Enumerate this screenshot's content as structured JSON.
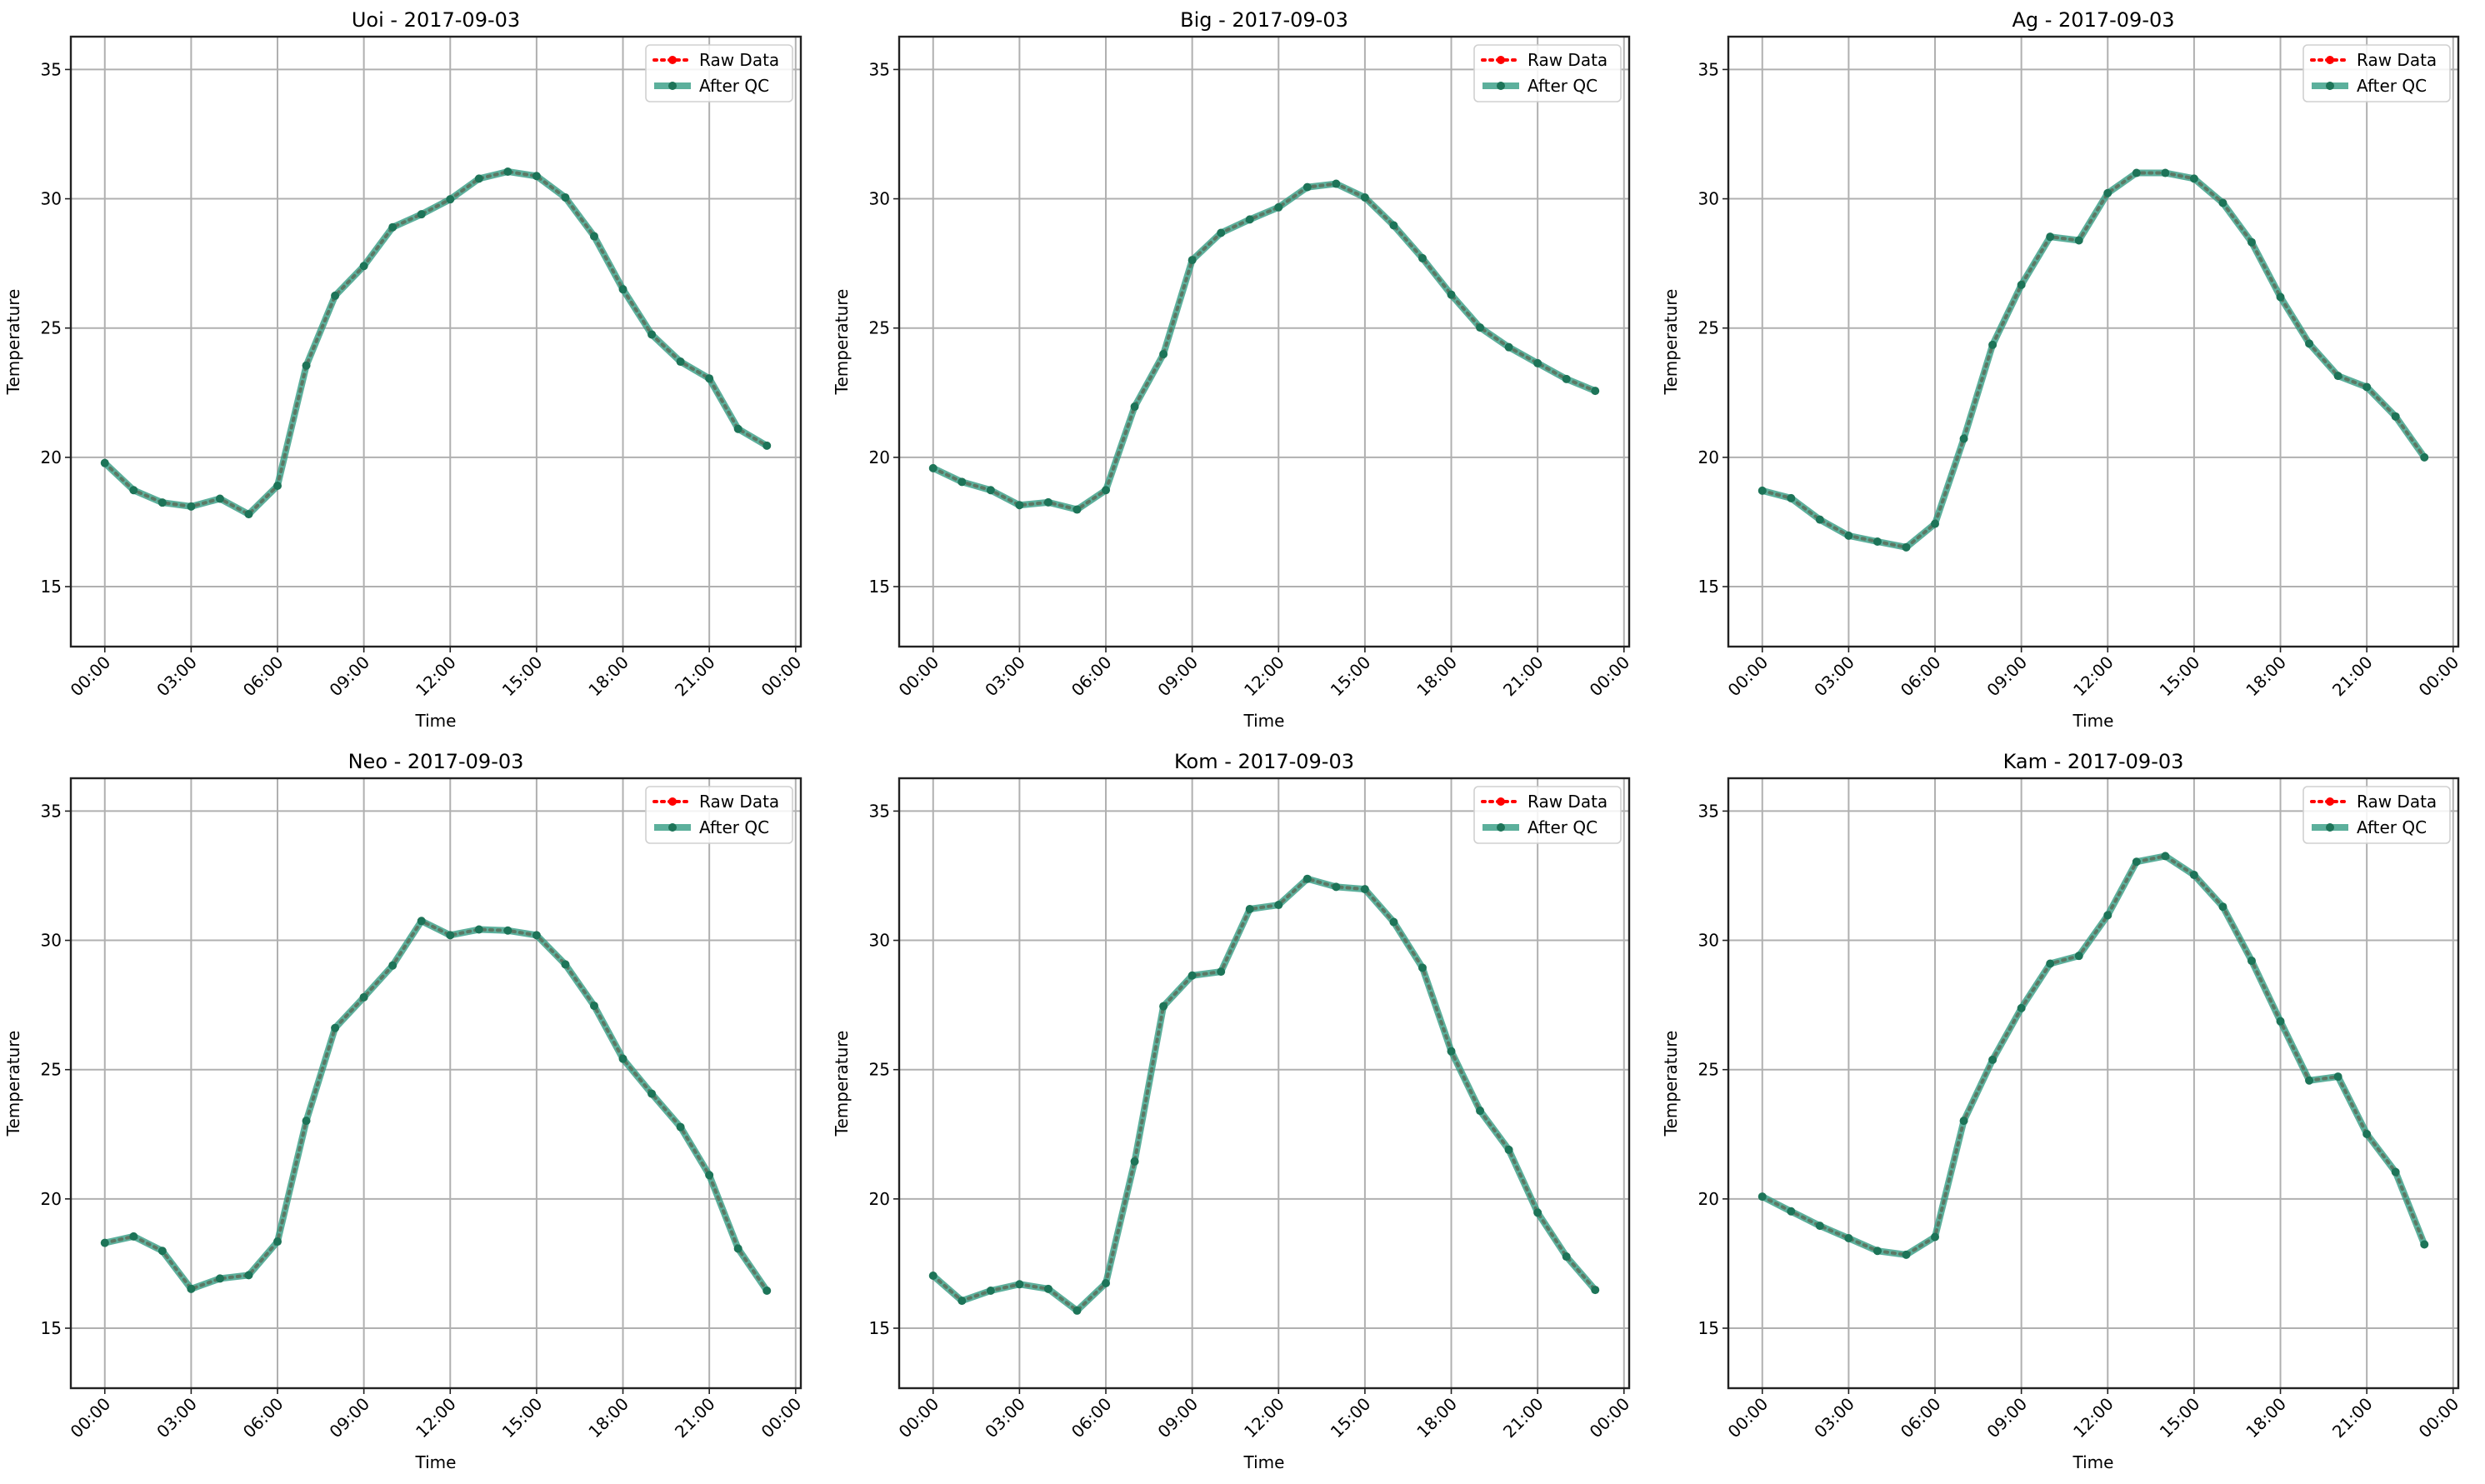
{
  "chart_data": [
    {
      "type": "line",
      "title": "Uoi - 2017-09-03",
      "xlabel": "Time",
      "ylabel": "Temperature",
      "x_hours": [
        0,
        1,
        2,
        3,
        4,
        5,
        6,
        7,
        8,
        9,
        10,
        11,
        12,
        13,
        14,
        15,
        16,
        17,
        18,
        19,
        20,
        21,
        22,
        23
      ],
      "series": [
        {
          "name": "Raw Data",
          "values": [
            19.78,
            18.73,
            18.25,
            18.1,
            18.4,
            17.8,
            18.9,
            23.55,
            26.25,
            27.4,
            28.9,
            29.4,
            29.98,
            30.78,
            31.05,
            30.88,
            30.05,
            28.55,
            26.5,
            24.75,
            23.7,
            23.05,
            21.1,
            20.45
          ]
        },
        {
          "name": "After QC",
          "values": [
            19.78,
            18.73,
            18.25,
            18.1,
            18.4,
            17.8,
            18.9,
            23.55,
            26.25,
            27.4,
            28.9,
            29.4,
            29.98,
            30.78,
            31.05,
            30.88,
            30.05,
            28.55,
            26.5,
            24.75,
            23.7,
            23.05,
            21.1,
            20.45
          ]
        }
      ]
    },
    {
      "type": "line",
      "title": "Big - 2017-09-03",
      "xlabel": "Time",
      "ylabel": "Temperature",
      "x_hours": [
        0,
        1,
        2,
        3,
        4,
        5,
        6,
        7,
        8,
        9,
        10,
        11,
        12,
        13,
        14,
        15,
        16,
        17,
        18,
        19,
        20,
        21,
        22,
        23
      ],
      "series": [
        {
          "name": "Raw Data",
          "values": [
            19.58,
            19.05,
            18.73,
            18.15,
            18.26,
            17.98,
            18.73,
            21.96,
            23.99,
            27.63,
            28.68,
            29.2,
            29.67,
            30.45,
            30.58,
            30.05,
            28.97,
            27.7,
            26.29,
            25.02,
            24.26,
            23.64,
            23.03,
            22.57
          ]
        },
        {
          "name": "After QC",
          "values": [
            19.58,
            19.05,
            18.73,
            18.15,
            18.26,
            17.98,
            18.73,
            21.96,
            23.99,
            27.63,
            28.68,
            29.2,
            29.67,
            30.45,
            30.58,
            30.05,
            28.97,
            27.7,
            26.29,
            25.02,
            24.26,
            23.64,
            23.03,
            22.57
          ]
        }
      ]
    },
    {
      "type": "line",
      "title": "Ag - 2017-09-03",
      "xlabel": "Time",
      "ylabel": "Temperature",
      "x_hours": [
        0,
        1,
        2,
        3,
        4,
        5,
        6,
        7,
        8,
        9,
        10,
        11,
        12,
        13,
        14,
        15,
        16,
        17,
        18,
        19,
        20,
        21,
        22,
        23
      ],
      "series": [
        {
          "name": "Raw Data",
          "values": [
            18.71,
            18.42,
            17.59,
            16.97,
            16.74,
            16.52,
            17.43,
            20.72,
            24.35,
            26.67,
            28.53,
            28.39,
            30.22,
            31.0,
            31.0,
            30.78,
            29.84,
            28.32,
            26.2,
            24.4,
            23.15,
            22.72,
            21.58,
            20.0
          ]
        },
        {
          "name": "After QC",
          "values": [
            18.71,
            18.42,
            17.59,
            16.97,
            16.74,
            16.52,
            17.43,
            20.72,
            24.35,
            26.67,
            28.53,
            28.39,
            30.22,
            31.0,
            31.0,
            30.78,
            29.84,
            28.32,
            26.2,
            24.4,
            23.15,
            22.72,
            21.58,
            20.0
          ]
        }
      ]
    },
    {
      "type": "line",
      "title": "Neo - 2017-09-03",
      "xlabel": "Time",
      "ylabel": "Temperature",
      "x_hours": [
        0,
        1,
        2,
        3,
        4,
        5,
        6,
        7,
        8,
        9,
        10,
        11,
        12,
        13,
        14,
        15,
        16,
        17,
        18,
        19,
        20,
        21,
        22,
        23
      ],
      "series": [
        {
          "name": "Raw Data",
          "values": [
            18.3,
            18.55,
            17.99,
            16.52,
            16.92,
            17.05,
            18.35,
            23.02,
            26.61,
            27.8,
            29.03,
            30.75,
            30.2,
            30.42,
            30.38,
            30.2,
            29.07,
            27.47,
            25.42,
            24.07,
            22.78,
            20.92,
            18.08,
            16.45
          ]
        },
        {
          "name": "After QC",
          "values": [
            18.3,
            18.55,
            17.99,
            16.52,
            16.92,
            17.05,
            18.35,
            23.02,
            26.61,
            27.8,
            29.03,
            30.75,
            30.2,
            30.42,
            30.38,
            30.2,
            29.07,
            27.47,
            25.42,
            24.07,
            22.78,
            20.92,
            18.08,
            16.45
          ]
        }
      ]
    },
    {
      "type": "line",
      "title": "Kom - 2017-09-03",
      "xlabel": "Time",
      "ylabel": "Temperature",
      "x_hours": [
        0,
        1,
        2,
        3,
        4,
        5,
        6,
        7,
        8,
        9,
        10,
        11,
        12,
        13,
        14,
        15,
        16,
        17,
        18,
        19,
        20,
        21,
        22,
        23
      ],
      "series": [
        {
          "name": "Raw Data",
          "values": [
            17.03,
            16.06,
            16.45,
            16.7,
            16.52,
            15.68,
            16.74,
            21.45,
            27.45,
            28.64,
            28.79,
            31.21,
            31.37,
            32.38,
            32.07,
            31.98,
            30.71,
            28.94,
            25.71,
            23.41,
            21.9,
            19.47,
            17.77,
            16.48
          ]
        },
        {
          "name": "After QC",
          "values": [
            17.03,
            16.06,
            16.45,
            16.7,
            16.52,
            15.68,
            16.74,
            21.45,
            27.45,
            28.64,
            28.79,
            31.21,
            31.37,
            32.38,
            32.07,
            31.98,
            30.71,
            28.94,
            25.71,
            23.41,
            21.9,
            19.47,
            17.77,
            16.48
          ]
        }
      ]
    },
    {
      "type": "line",
      "title": "Kam - 2017-09-03",
      "xlabel": "Time",
      "ylabel": "Temperature",
      "x_hours": [
        0,
        1,
        2,
        3,
        4,
        5,
        6,
        7,
        8,
        9,
        10,
        11,
        12,
        13,
        14,
        15,
        16,
        17,
        18,
        19,
        20,
        21,
        22,
        23
      ],
      "series": [
        {
          "name": "Raw Data",
          "values": [
            20.09,
            19.52,
            18.96,
            18.48,
            17.99,
            17.84,
            18.53,
            23.02,
            25.38,
            27.38,
            29.1,
            29.4,
            30.97,
            33.04,
            33.26,
            32.53,
            31.3,
            29.21,
            26.87,
            24.58,
            24.73,
            22.51,
            21.04,
            18.24
          ]
        },
        {
          "name": "After QC",
          "values": [
            20.09,
            19.52,
            18.96,
            18.48,
            17.99,
            17.84,
            18.53,
            23.02,
            25.38,
            27.38,
            29.1,
            29.4,
            30.97,
            33.04,
            33.26,
            32.53,
            31.3,
            29.21,
            26.87,
            24.58,
            24.73,
            22.51,
            21.04,
            18.24
          ]
        }
      ]
    }
  ],
  "shared_axes": {
    "ylim": [
      12.68,
      36.27
    ],
    "yticks": [
      15,
      20,
      25,
      30,
      35
    ],
    "xlim_hours": [
      -1.18,
      24.18
    ],
    "xtick_hours": [
      0,
      3,
      6,
      9,
      12,
      15,
      18,
      21,
      24
    ],
    "xtick_labels": [
      "00:00",
      "03:00",
      "06:00",
      "09:00",
      "12:00",
      "15:00",
      "18:00",
      "21:00",
      "00:00"
    ],
    "grid": true,
    "legend_placement": "top-right",
    "legend": [
      "Raw Data",
      "After QC"
    ]
  },
  "colors": {
    "raw": "#ff0000",
    "qc": "#2e9a80",
    "qc_marker": "#1d7458",
    "grid": "#b0b0b0",
    "axis": "#222222"
  }
}
